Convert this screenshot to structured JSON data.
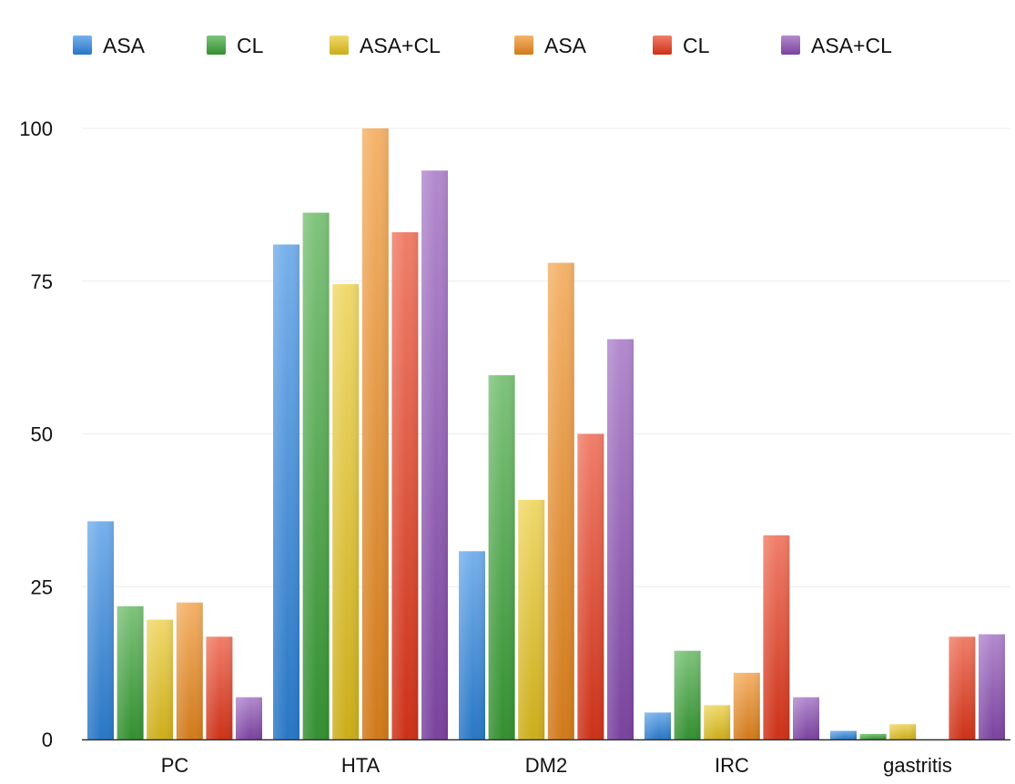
{
  "chart_data": {
    "type": "bar",
    "categories": [
      "PC",
      "HTA",
      "DM2",
      "IRC",
      "gastritis"
    ],
    "series": [
      {
        "name": "ASA",
        "color": "#2e86e0",
        "values": [
          35.7,
          81,
          30.8,
          4.4,
          1.4
        ]
      },
      {
        "name": "CL",
        "color": "#3aa336",
        "values": [
          21.8,
          86.2,
          59.6,
          14.5,
          0.9
        ]
      },
      {
        "name": "ASA+CL",
        "color": "#e8c51e",
        "values": [
          19.6,
          74.5,
          39.2,
          5.6,
          2.5
        ]
      },
      {
        "name": "ASA",
        "color": "#ee8a1c",
        "values": [
          22.4,
          100,
          78,
          10.9,
          0
        ]
      },
      {
        "name": "CL",
        "color": "#e8381a",
        "values": [
          16.8,
          83,
          50,
          33.4,
          16.8
        ]
      },
      {
        "name": "ASA+CL",
        "color": "#8a4bb3",
        "values": [
          6.9,
          93.1,
          65.5,
          6.9,
          17.2
        ]
      }
    ],
    "yticks": [
      "0",
      "25",
      "50",
      "75",
      "100"
    ],
    "ylim": [
      0,
      100
    ],
    "grid": true,
    "legend": "top"
  }
}
